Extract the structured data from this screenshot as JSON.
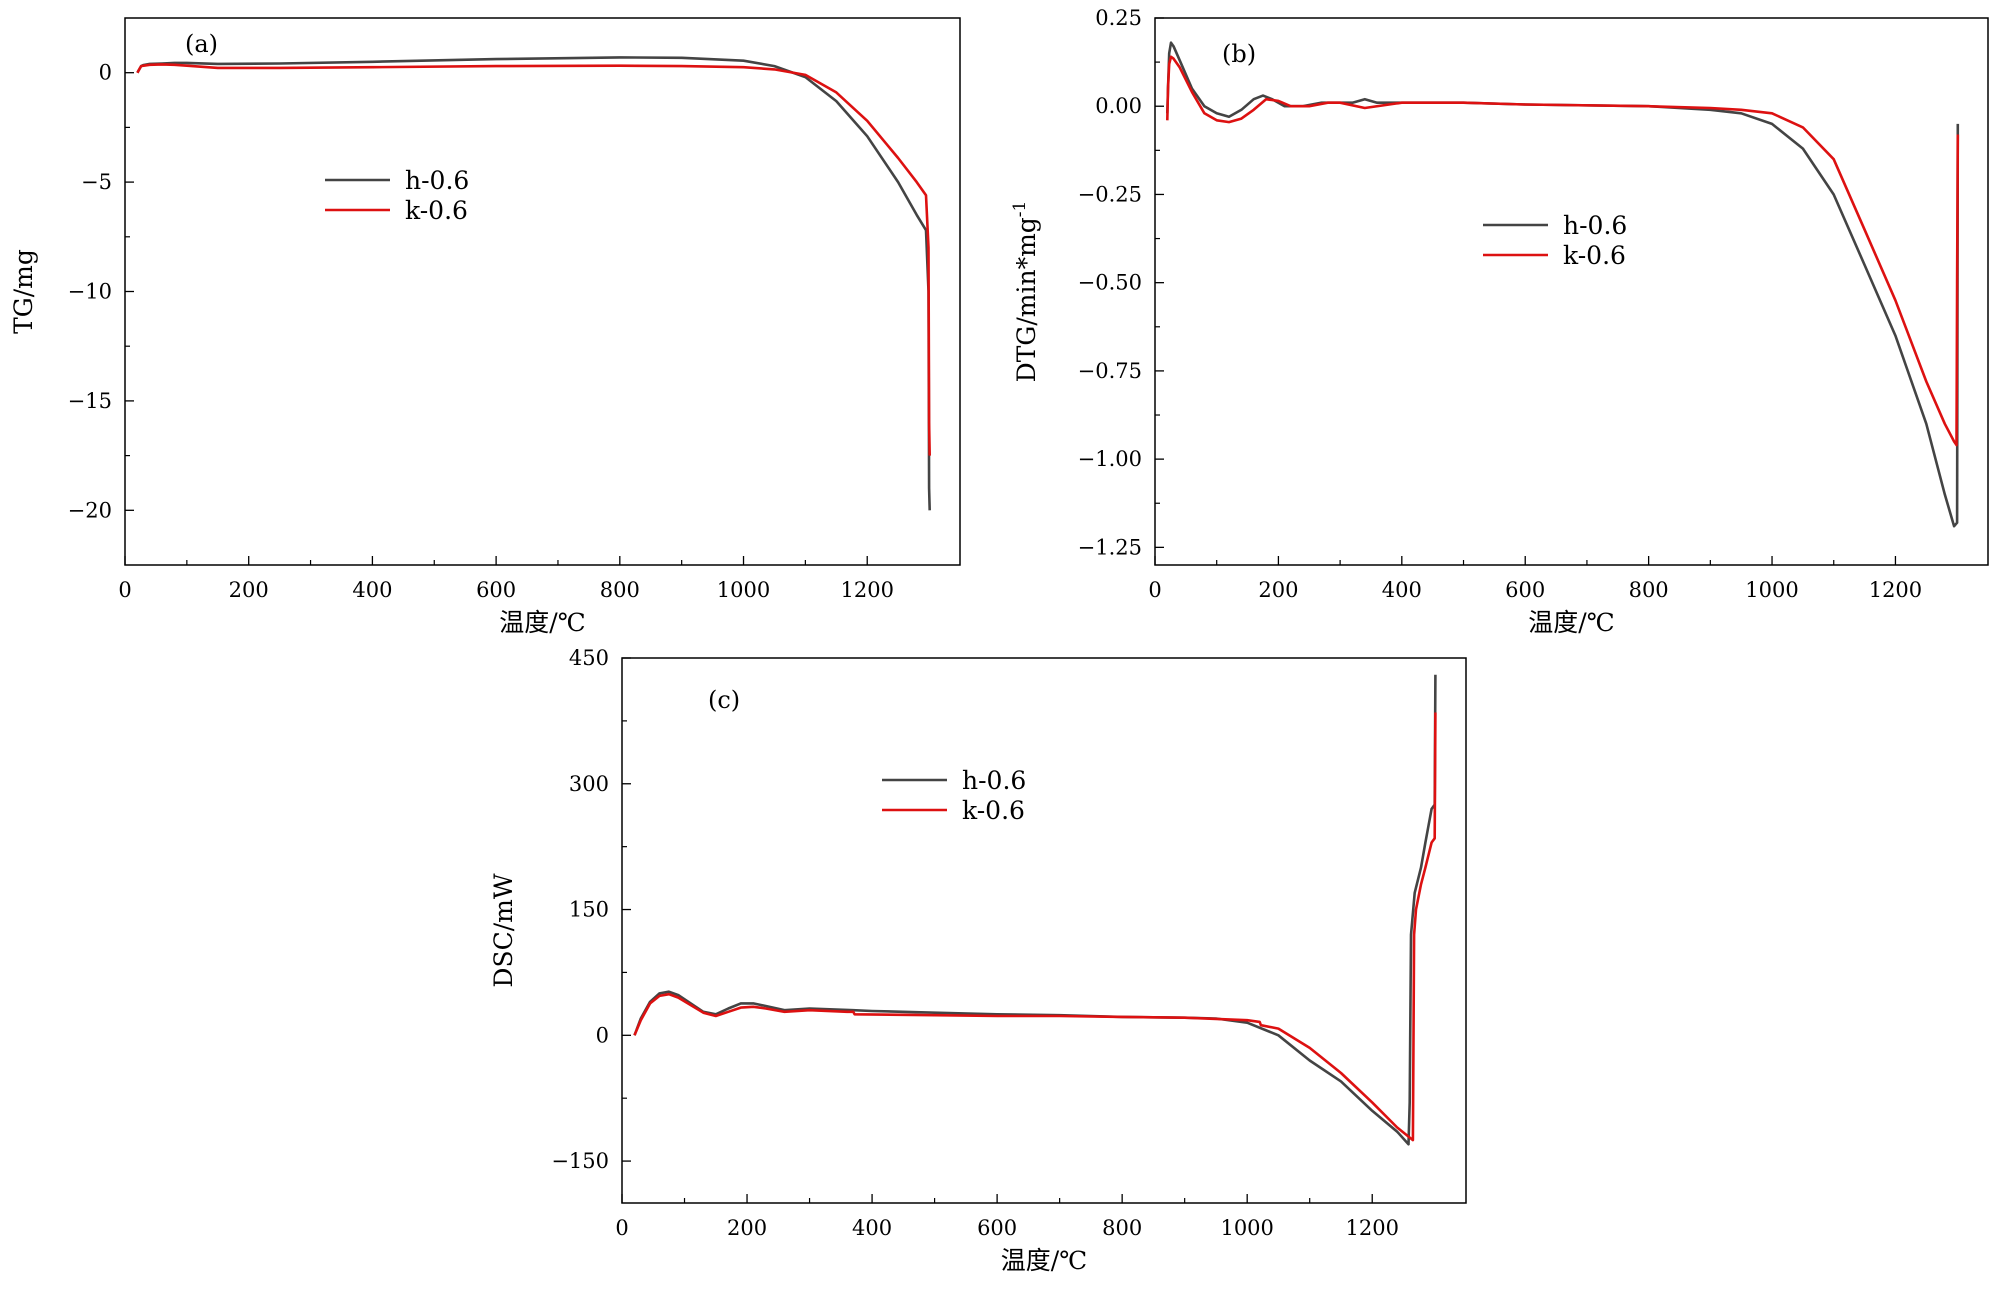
{
  "chart_data": [
    {
      "type": "line",
      "panel_label": "(a)",
      "xlabel": "温度/℃",
      "ylabel": "TG/mg",
      "xlim": [
        0,
        1350
      ],
      "ylim": [
        -22.5,
        2.5
      ],
      "xticks": [
        0,
        200,
        400,
        600,
        800,
        1000,
        1200
      ],
      "yticks": [
        0,
        -5,
        -10,
        -15,
        -20
      ],
      "legend_position": "center-left",
      "series": [
        {
          "name": "h-0.6",
          "color": "#444444",
          "x": [
            20,
            22,
            26,
            30,
            40,
            60,
            80,
            100,
            150,
            250,
            400,
            600,
            800,
            900,
            1000,
            1050,
            1100,
            1150,
            1200,
            1250,
            1280,
            1295,
            1299,
            1300,
            1301
          ],
          "y": [
            0,
            0.1,
            0.3,
            0.35,
            0.4,
            0.42,
            0.45,
            0.45,
            0.4,
            0.42,
            0.5,
            0.62,
            0.7,
            0.68,
            0.55,
            0.3,
            -0.2,
            -1.3,
            -2.9,
            -5.0,
            -6.5,
            -7.2,
            -10,
            -19,
            -20
          ]
        },
        {
          "name": "k-0.6",
          "color": "#dd1111",
          "x": [
            20,
            22,
            26,
            30,
            40,
            60,
            80,
            100,
            150,
            250,
            400,
            600,
            800,
            900,
            1000,
            1050,
            1100,
            1150,
            1200,
            1250,
            1280,
            1295,
            1299,
            1300,
            1301
          ],
          "y": [
            0,
            0.1,
            0.3,
            0.32,
            0.36,
            0.38,
            0.36,
            0.32,
            0.22,
            0.22,
            0.25,
            0.3,
            0.32,
            0.3,
            0.25,
            0.15,
            -0.1,
            -0.9,
            -2.2,
            -3.9,
            -5.0,
            -5.6,
            -8,
            -16,
            -17.5
          ]
        }
      ]
    },
    {
      "type": "line",
      "panel_label": "(b)",
      "xlabel": "温度/℃",
      "ylabel": "DTG/min*mg",
      "ylabel_superscript": "-1",
      "xlim": [
        0,
        1350
      ],
      "ylim": [
        -1.3,
        0.25
      ],
      "xticks": [
        0,
        200,
        400,
        600,
        800,
        1000,
        1200
      ],
      "yticks": [
        0.25,
        0.0,
        -0.25,
        -0.5,
        -0.75,
        -1.0,
        -1.25
      ],
      "ytick_labels": [
        "0.25",
        "0.00",
        "−0.25",
        "−0.50",
        "−0.75",
        "−1.00",
        "−1.25"
      ],
      "legend_position": "center-right",
      "series": [
        {
          "name": "h-0.6",
          "color": "#444444",
          "x": [
            20,
            21,
            23,
            26,
            30,
            40,
            60,
            80,
            100,
            120,
            140,
            160,
            175,
            190,
            210,
            240,
            270,
            300,
            320,
            340,
            360,
            400,
            500,
            600,
            800,
            900,
            950,
            1000,
            1050,
            1100,
            1150,
            1200,
            1250,
            1280,
            1295,
            1300,
            1301
          ],
          "y": [
            -0.02,
            0.05,
            0.15,
            0.18,
            0.17,
            0.13,
            0.05,
            0.0,
            -0.02,
            -0.03,
            -0.01,
            0.02,
            0.03,
            0.02,
            0.0,
            0.0,
            0.01,
            0.01,
            0.01,
            0.02,
            0.01,
            0.01,
            0.01,
            0.005,
            0.0,
            -0.01,
            -0.02,
            -0.05,
            -0.12,
            -0.25,
            -0.45,
            -0.65,
            -0.9,
            -1.1,
            -1.19,
            -1.18,
            -0.05
          ]
        },
        {
          "name": "k-0.6",
          "color": "#dd1111",
          "x": [
            20,
            21,
            23,
            26,
            30,
            40,
            60,
            80,
            100,
            120,
            140,
            160,
            180,
            200,
            220,
            250,
            280,
            300,
            340,
            400,
            500,
            600,
            800,
            900,
            950,
            1000,
            1050,
            1100,
            1150,
            1200,
            1250,
            1280,
            1295,
            1299,
            1300,
            1301
          ],
          "y": [
            -0.04,
            0.05,
            0.12,
            0.14,
            0.135,
            0.11,
            0.04,
            -0.02,
            -0.04,
            -0.045,
            -0.035,
            -0.01,
            0.02,
            0.015,
            0.0,
            0.0,
            0.01,
            0.01,
            -0.005,
            0.01,
            0.01,
            0.005,
            0.0,
            -0.005,
            -0.01,
            -0.02,
            -0.06,
            -0.15,
            -0.35,
            -0.55,
            -0.78,
            -0.9,
            -0.95,
            -0.96,
            -0.5,
            -0.08
          ]
        }
      ]
    },
    {
      "type": "line",
      "panel_label": "(c)",
      "xlabel": "温度/℃",
      "ylabel": "DSC/mW",
      "xlim": [
        0,
        1350
      ],
      "ylim": [
        -200,
        450
      ],
      "xticks": [
        0,
        200,
        400,
        600,
        800,
        1000,
        1200
      ],
      "yticks": [
        450,
        300,
        150,
        0,
        -150
      ],
      "legend_position": "top-left",
      "series": [
        {
          "name": "h-0.6",
          "color": "#444444",
          "x": [
            20,
            30,
            45,
            60,
            75,
            90,
            110,
            130,
            150,
            170,
            190,
            210,
            230,
            260,
            300,
            370,
            400,
            500,
            600,
            700,
            800,
            900,
            950,
            1000,
            1050,
            1100,
            1150,
            1200,
            1240,
            1258,
            1260,
            1262,
            1268,
            1278,
            1285,
            1290,
            1295,
            1300,
            1301
          ],
          "y": [
            0,
            20,
            40,
            50,
            52,
            48,
            38,
            28,
            25,
            32,
            38,
            38,
            35,
            30,
            32,
            30,
            29,
            27,
            25,
            24,
            22,
            21,
            20,
            15,
            0,
            -30,
            -55,
            -90,
            -115,
            -130,
            -80,
            120,
            170,
            200,
            230,
            250,
            270,
            275,
            430
          ]
        },
        {
          "name": "k-0.6",
          "color": "#dd1111",
          "x": [
            20,
            30,
            45,
            60,
            75,
            90,
            110,
            130,
            150,
            170,
            190,
            210,
            230,
            260,
            300,
            360,
            370,
            372,
            500,
            600,
            700,
            800,
            900,
            1000,
            1020,
            1022,
            1050,
            1100,
            1150,
            1200,
            1240,
            1265,
            1267,
            1270,
            1278,
            1285,
            1290,
            1295,
            1300,
            1301
          ],
          "y": [
            0,
            18,
            38,
            47,
            49,
            45,
            36,
            27,
            23,
            28,
            33,
            34,
            32,
            28,
            30,
            28,
            28,
            25,
            24,
            23,
            23,
            22,
            21,
            18,
            16,
            12,
            8,
            -15,
            -45,
            -80,
            -110,
            -125,
            120,
            150,
            180,
            200,
            215,
            230,
            235,
            385
          ]
        }
      ]
    }
  ]
}
